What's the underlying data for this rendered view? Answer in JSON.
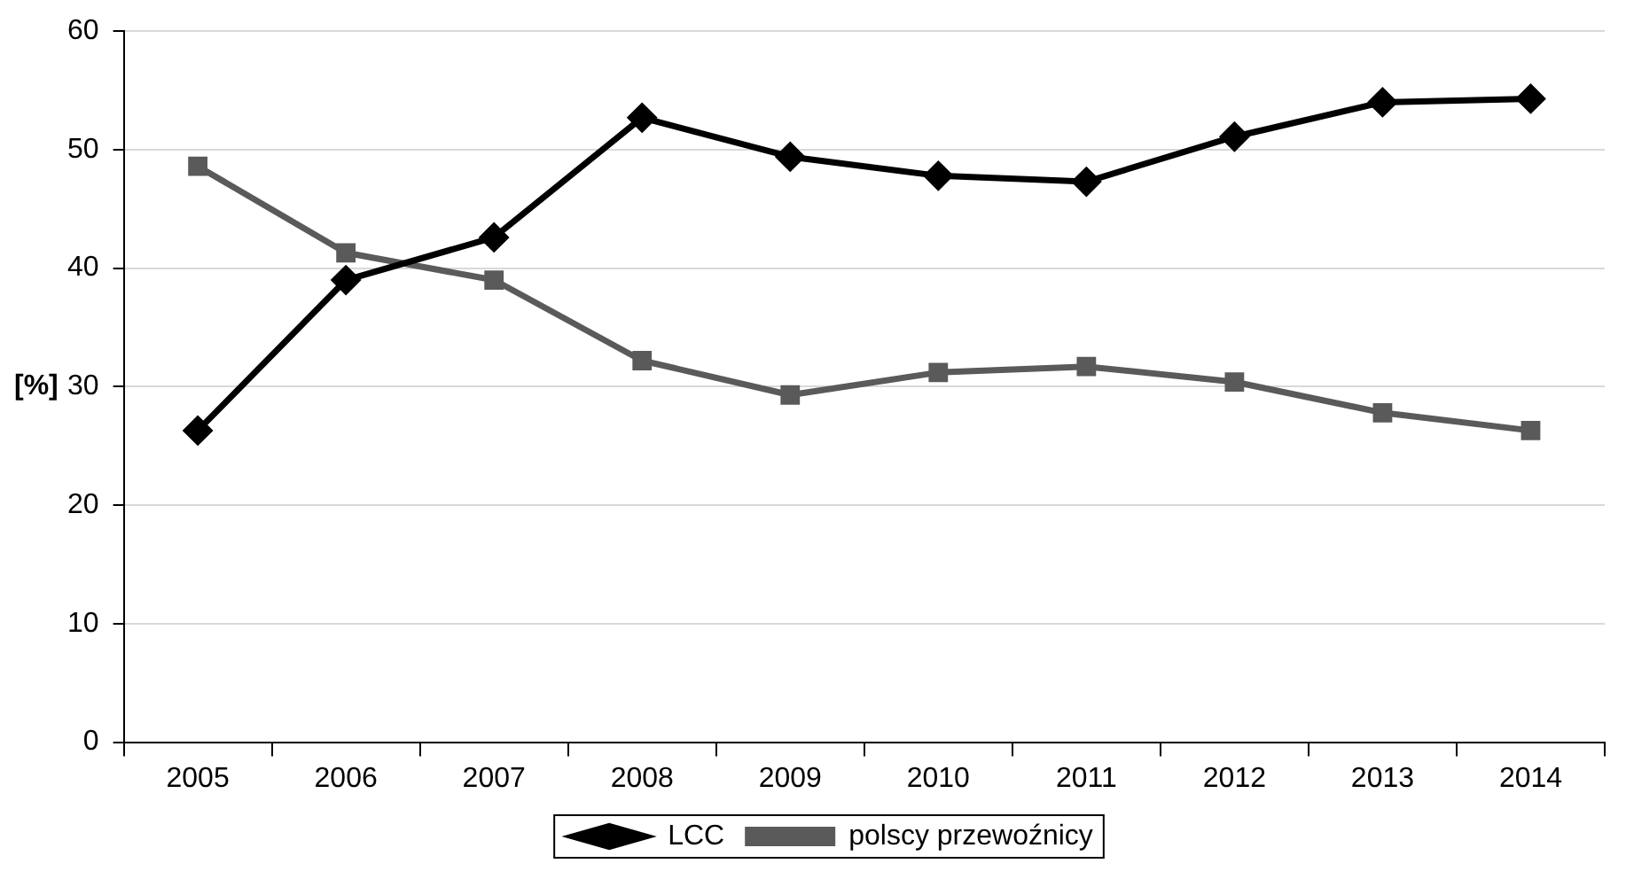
{
  "chart_data": {
    "type": "line",
    "ylabel": "[%]",
    "categories": [
      "2005",
      "2006",
      "2007",
      "2008",
      "2009",
      "2010",
      "2011",
      "2012",
      "2013",
      "2014"
    ],
    "series": [
      {
        "name": "LCC",
        "color": "#000000",
        "marker": "diamond",
        "values": [
          26.3,
          39.0,
          42.6,
          52.7,
          49.4,
          47.8,
          47.3,
          51.1,
          54.0,
          54.3
        ]
      },
      {
        "name": "polscy przewoźnicy",
        "color": "#5a5a5a",
        "marker": "square",
        "values": [
          48.6,
          41.3,
          39.0,
          32.2,
          29.3,
          31.2,
          31.7,
          30.4,
          27.8,
          26.3
        ]
      }
    ],
    "ylim": [
      0,
      60
    ],
    "yticks": [
      0,
      10,
      20,
      30,
      40,
      50,
      60
    ],
    "grid": "y",
    "legend": "bottom",
    "line_style": "solid"
  }
}
